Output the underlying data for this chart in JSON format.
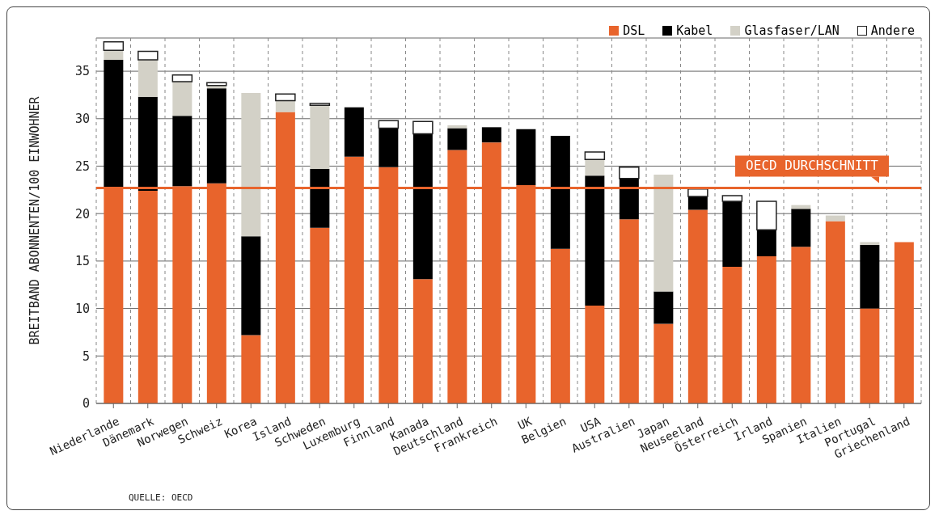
{
  "chart_data": {
    "type": "bar",
    "stacked": true,
    "ylabel": "BREITBAND ABONNENTEN/100 EINWOHNER",
    "categories": [
      "Niederlande",
      "Dänemark",
      "Norwegen",
      "Schweiz",
      "Korea",
      "Island",
      "Schweden",
      "Luxemburg",
      "Finnland",
      "Kanada",
      "Deutschland",
      "Frankreich",
      "UK",
      "Belgien",
      "USA",
      "Australien",
      "Japan",
      "Neuseeland",
      "Österreich",
      "Irland",
      "Spanien",
      "Italien",
      "Portugal",
      "Griechenland"
    ],
    "series": [
      {
        "name": "DSL",
        "color": "#e8642c",
        "values": [
          22.6,
          22.4,
          22.9,
          23.2,
          7.2,
          30.7,
          18.5,
          26.0,
          24.9,
          13.1,
          26.7,
          27.5,
          23.0,
          16.3,
          10.3,
          19.4,
          8.4,
          20.4,
          14.4,
          15.5,
          16.5,
          19.2,
          10.0,
          17.0
        ]
      },
      {
        "name": "Kabel",
        "color": "#000000",
        "values": [
          13.6,
          9.9,
          7.4,
          10.0,
          10.4,
          0,
          6.2,
          5.2,
          4.1,
          15.3,
          2.3,
          1.6,
          5.9,
          11.9,
          13.7,
          4.3,
          3.4,
          1.4,
          6.9,
          2.8,
          4.0,
          0,
          6.7,
          0
        ]
      },
      {
        "name": "Glasfaser/LAN",
        "color": "#d3d1c7",
        "values": [
          1.0,
          3.9,
          3.6,
          0.3,
          15.1,
          1.2,
          6.7,
          0,
          0,
          0,
          0.3,
          0,
          0,
          null,
          1.7,
          0,
          12.3,
          0,
          0,
          null,
          0.4,
          0.6,
          0.3,
          0
        ]
      },
      {
        "name": "Andere",
        "color": "#ffffff",
        "values": [
          0.9,
          0.9,
          0.7,
          0.3,
          0,
          0.7,
          0.2,
          0,
          0.8,
          1.3,
          0,
          0,
          0,
          0,
          0.8,
          1.2,
          0,
          0.8,
          0.6,
          3.0,
          0,
          0,
          0,
          0
        ]
      }
    ],
    "ylim": [
      0,
      38.5
    ],
    "yticks": [
      0,
      5,
      10,
      15,
      20,
      25,
      30,
      35
    ],
    "grid": true,
    "legend": "top right",
    "ref_lines": [
      {
        "axis": "y",
        "value": 22.7,
        "label": "OECD DURCHSCHNITT",
        "color": "#e8642c"
      }
    ],
    "annotations": [
      "QUELLE: OECD"
    ]
  }
}
